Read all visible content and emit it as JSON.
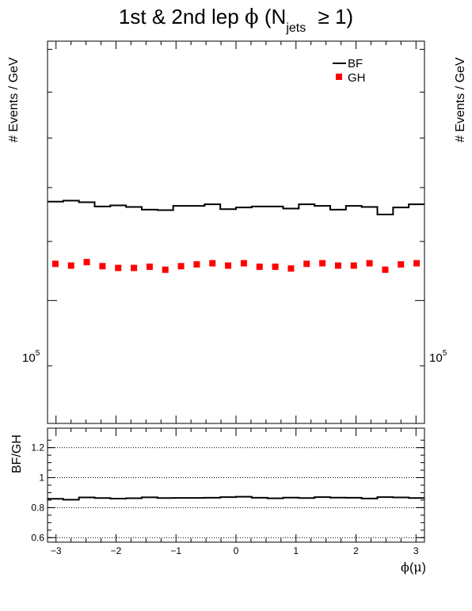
{
  "chart_data": [
    {
      "type": "line",
      "title": {
        "pre": "1st & 2nd lep ",
        "phi": "ϕ",
        "mid": " (N",
        "sub": "jets",
        "post": " ≥ 1)"
      },
      "ylabel": "# Events / GeV",
      "yscale": "log",
      "ylim": [
        82000,
        152000
      ],
      "ytick_major_label": {
        "base": "10",
        "exp": "5"
      },
      "x_bin_edges_range": [
        -3.1416,
        3.1416
      ],
      "legend": {
        "placement": "top-right",
        "entries": [
          "BF",
          "GH"
        ]
      },
      "series": [
        {
          "name": "BF",
          "style": "step",
          "color": "#000000",
          "values": [
            117300,
            117500,
            117200,
            116400,
            116600,
            116300,
            115800,
            115700,
            116500,
            116500,
            116800,
            115900,
            116200,
            116400,
            116400,
            116000,
            116800,
            116500,
            115800,
            116500,
            116300,
            114900,
            116200,
            116800
          ]
        },
        {
          "name": "GH",
          "style": "marker-square",
          "color": "#ff0000",
          "values": [
            106100,
            105800,
            106400,
            105700,
            105400,
            105400,
            105600,
            105100,
            105700,
            106000,
            106200,
            105800,
            106200,
            105600,
            105600,
            105300,
            106100,
            106200,
            105800,
            105800,
            106200,
            105100,
            106000,
            106200
          ]
        }
      ]
    },
    {
      "type": "line",
      "ylabel": "BF/GH",
      "xlabel": {
        "phi": "ϕ",
        "open": "(",
        "mu": "μ",
        "close": ")"
      },
      "xlim": [
        -3.1416,
        3.1416
      ],
      "ylim": [
        0.57,
        1.33
      ],
      "yticks": [
        "0.6",
        "0.8",
        "1",
        "1.2"
      ],
      "xticks": [
        "−3",
        "−2",
        "−1",
        "0",
        "1",
        "2",
        "3"
      ],
      "gridlines_dotted": true,
      "series": [
        {
          "name": "BF/GH",
          "style": "step",
          "color": "#000000",
          "values": [
            0.859,
            0.853,
            0.868,
            0.864,
            0.86,
            0.863,
            0.869,
            0.864,
            0.865,
            0.865,
            0.866,
            0.87,
            0.873,
            0.866,
            0.862,
            0.867,
            0.864,
            0.87,
            0.867,
            0.866,
            0.861,
            0.87,
            0.868,
            0.864
          ]
        }
      ]
    }
  ]
}
